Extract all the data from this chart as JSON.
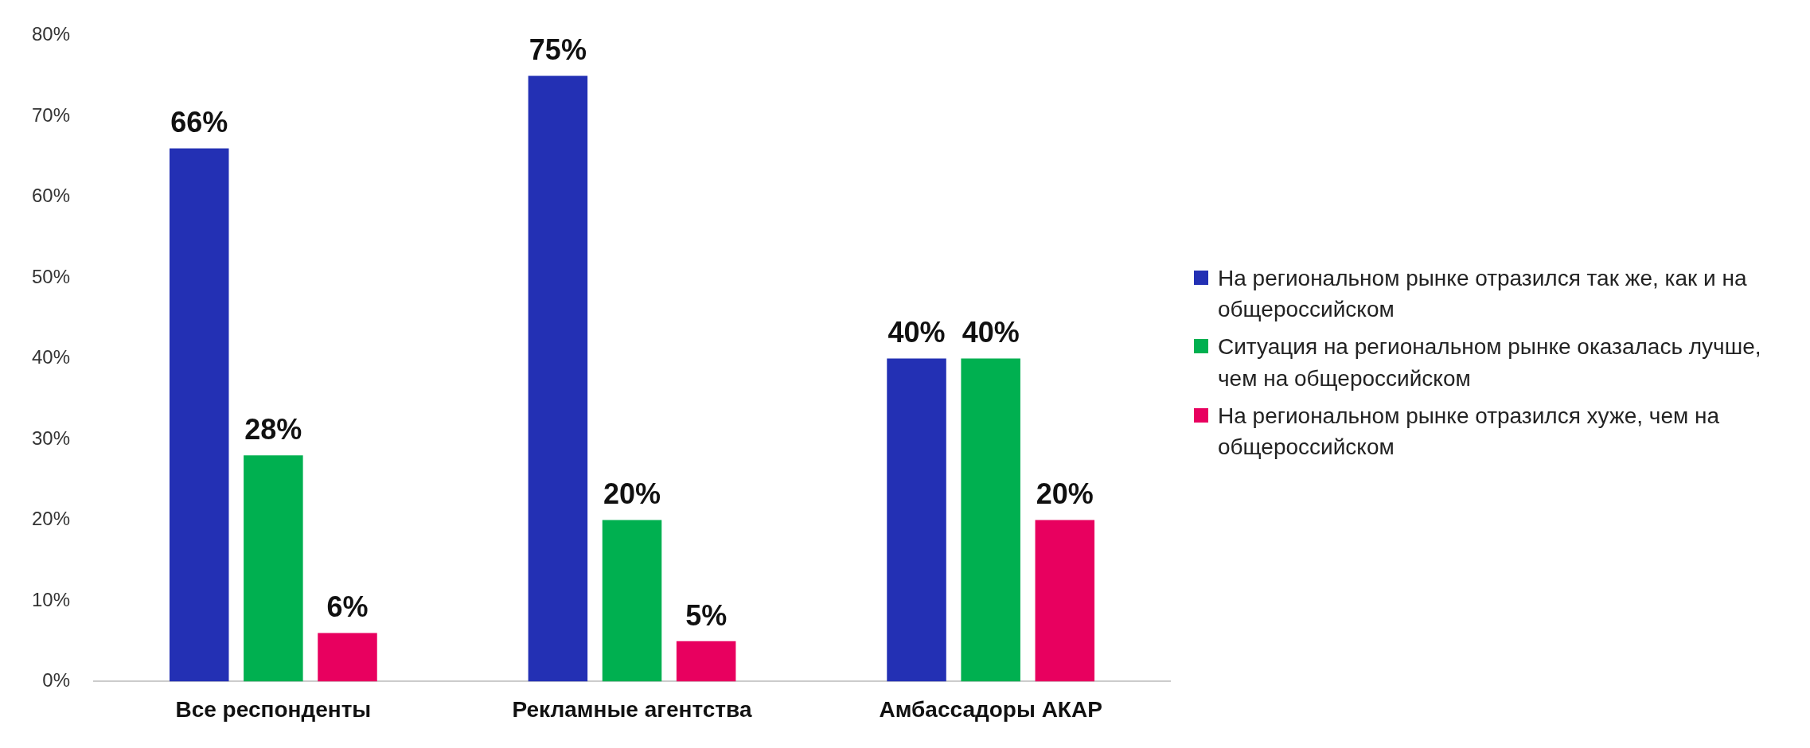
{
  "chart_data": {
    "type": "bar",
    "categories": [
      "Все респонденты",
      "Рекламные агентства",
      "Амбассадоры АКАР"
    ],
    "series": [
      {
        "name": "На региональном рынке отразился так же, как и на общероссийском",
        "color": "#2330b4",
        "values": [
          66,
          75,
          40
        ],
        "value_labels": [
          "66%",
          "75%",
          "40%"
        ]
      },
      {
        "name": "Ситуация на региональном рынке оказалась лучше, чем на общероссийском",
        "color": "#00b050",
        "values": [
          28,
          20,
          40
        ],
        "value_labels": [
          "28%",
          "20%",
          "40%"
        ]
      },
      {
        "name": "На региональном рынке отразился хуже, чем на общероссийском",
        "color": "#e8005f",
        "values": [
          6,
          5,
          20
        ],
        "value_labels": [
          "6%",
          "5%",
          "20%"
        ]
      }
    ],
    "ylim": [
      0,
      80
    ],
    "yticks": [
      {
        "value": 0,
        "label": "0%"
      },
      {
        "value": 10,
        "label": "10%"
      },
      {
        "value": 20,
        "label": "20%"
      },
      {
        "value": 30,
        "label": "30%"
      },
      {
        "value": 40,
        "label": "40%"
      },
      {
        "value": 50,
        "label": "50%"
      },
      {
        "value": 60,
        "label": "60%"
      },
      {
        "value": 70,
        "label": "70%"
      },
      {
        "value": 80,
        "label": "80%"
      }
    ],
    "legend": "right",
    "grid": false
  }
}
